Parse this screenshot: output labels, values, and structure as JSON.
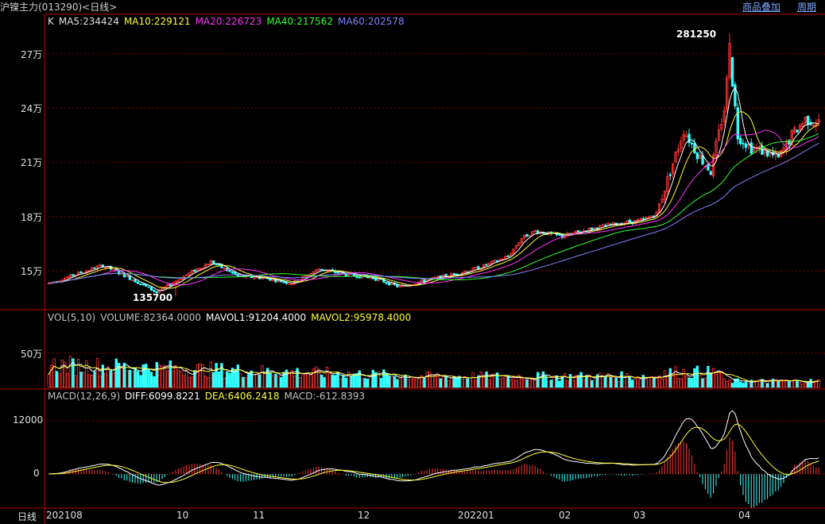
{
  "window": {
    "title": "沪镍主力(013290)<日线>",
    "links": [
      "商品叠加",
      "周期"
    ]
  },
  "price_panel": {
    "legend": [
      {
        "text": "K",
        "color": "#e0e0e0"
      },
      {
        "text": "MA5:234424",
        "color": "#e0e0e0"
      },
      {
        "text": "MA10:229121",
        "color": "#ffff33"
      },
      {
        "text": "MA20:226723",
        "color": "#ff33ff"
      },
      {
        "text": "MA40:217562",
        "color": "#33ff33"
      },
      {
        "text": "MA60:202578",
        "color": "#8080ff"
      }
    ],
    "y_ticks": [
      "27万",
      "24万",
      "21万",
      "18万",
      "15万"
    ],
    "high_label": "281250",
    "low_label": "135700"
  },
  "volume_panel": {
    "legend": [
      {
        "text": "VOL(5,10)",
        "color": "#c0c0c0"
      },
      {
        "text": "VOLUME:82364.0000",
        "color": "#c0c0c0"
      },
      {
        "text": "MAVOL1:91204.4000",
        "color": "#ffffff"
      },
      {
        "text": "MAVOL2:95978.4000",
        "color": "#ffff33"
      }
    ],
    "y_ticks": [
      "50万"
    ]
  },
  "macd_panel": {
    "legend": [
      {
        "text": "MACD(12,26,9)",
        "color": "#c0c0c0"
      },
      {
        "text": "DIFF:6099.8221",
        "color": "#ffffff"
      },
      {
        "text": "DEA:6406.2418",
        "color": "#ffff33"
      },
      {
        "text": "MACD:-612.8393",
        "color": "#c0c0c0"
      }
    ],
    "y_ticks": [
      "12000",
      "0"
    ]
  },
  "x_axis": {
    "period_label": "日线",
    "labels": [
      "202108",
      "10",
      "11",
      "12",
      "202201",
      "02",
      "03",
      "04"
    ]
  },
  "colors": {
    "up": "#ff3333",
    "down": "#33ffff",
    "grid": "#8b0000",
    "border": "#b00000",
    "ma5": "#ffffff",
    "ma10": "#ffff33",
    "ma20": "#ff33ff",
    "ma40": "#33ff33",
    "ma60": "#8080ff"
  },
  "chart_data": {
    "type": "candlestick",
    "ohlc_anchors": {
      "description_free": true,
      "points": [
        [
          0,
          143000
        ],
        [
          10,
          148000
        ],
        [
          20,
          153000
        ],
        [
          30,
          146000
        ],
        [
          40,
          138000
        ],
        [
          50,
          147000
        ],
        [
          60,
          155000
        ],
        [
          70,
          147000
        ],
        [
          80,
          146000
        ],
        [
          90,
          143000
        ],
        [
          100,
          151000
        ],
        [
          110,
          148000
        ],
        [
          120,
          146000
        ],
        [
          130,
          141000
        ],
        [
          140,
          145000
        ],
        [
          150,
          148000
        ],
        [
          160,
          152000
        ],
        [
          170,
          158000
        ],
        [
          175,
          168000
        ],
        [
          180,
          172000
        ],
        [
          190,
          169000
        ],
        [
          200,
          173000
        ],
        [
          210,
          176000
        ],
        [
          220,
          178000
        ],
        [
          225,
          182000
        ],
        [
          230,
          205000
        ],
        [
          235,
          228000
        ],
        [
          240,
          215000
        ],
        [
          245,
          205000
        ],
        [
          250,
          240000
        ],
        [
          252,
          270000
        ],
        [
          255,
          225000
        ],
        [
          260,
          218000
        ],
        [
          265,
          216000
        ],
        [
          270,
          212000
        ],
        [
          275,
          225000
        ],
        [
          280,
          234000
        ],
        [
          285,
          232000
        ]
      ]
    },
    "high": 281250,
    "low": 135700,
    "ylim": [
      130000,
      288000
    ]
  }
}
